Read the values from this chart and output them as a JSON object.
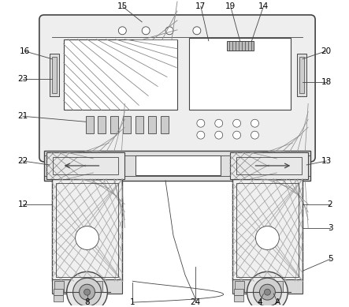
{
  "fig_width": 4.43,
  "fig_height": 3.89,
  "dpi": 100,
  "bg_color": "#ffffff",
  "line_color": "#444444",
  "label_fontsize": 7.5
}
